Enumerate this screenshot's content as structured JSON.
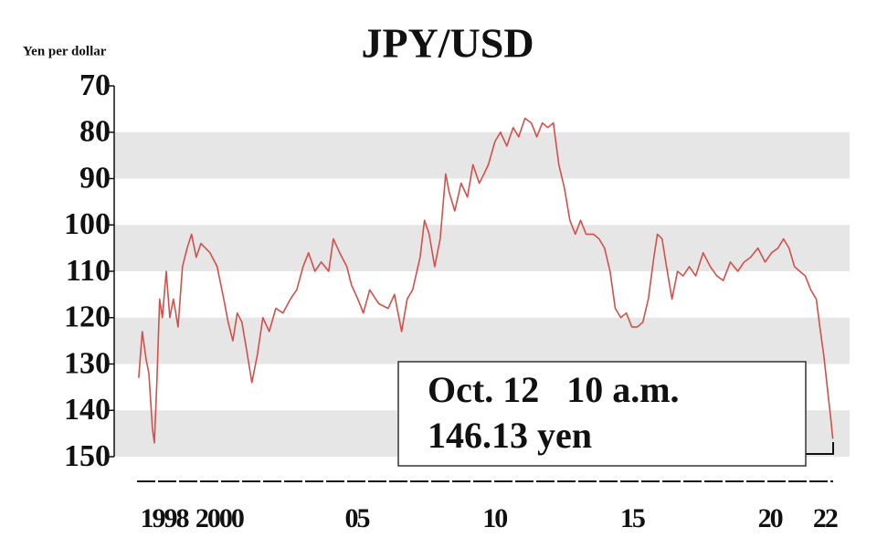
{
  "chart_data": {
    "type": "line",
    "title": "JPY/USD",
    "y_label": "Yen per dollar",
    "color": "#d2504a",
    "y_inverted": true,
    "bands": true,
    "ylim": [
      70,
      150
    ],
    "yticks": [
      70,
      80,
      90,
      100,
      110,
      120,
      130,
      140,
      150
    ],
    "xlim": [
      1996.19,
      2022.9
    ],
    "xticks": [
      {
        "value": 1998,
        "label": "1998"
      },
      {
        "value": 2000,
        "label": "2000"
      },
      {
        "value": 2005,
        "label": "05"
      },
      {
        "value": 2010,
        "label": "10"
      },
      {
        "value": 2015,
        "label": "15"
      },
      {
        "value": 2020,
        "label": "20"
      },
      {
        "value": 2022,
        "label": "22"
      }
    ],
    "annotation": [
      "Oct. 12   10 a.m.",
      "146.13 yen"
    ],
    "x": [
      1997.08,
      1997.21,
      1997.35,
      1997.45,
      1997.58,
      1997.65,
      1997.74,
      1997.84,
      1997.94,
      1998.08,
      1998.21,
      1998.34,
      1998.51,
      1998.67,
      1998.84,
      1999.0,
      1999.17,
      1999.34,
      1999.67,
      1999.93,
      2000.17,
      2000.33,
      2000.5,
      2000.66,
      2000.83,
      2001.0,
      2001.19,
      2001.39,
      2001.59,
      2001.82,
      2002.06,
      2002.32,
      2002.59,
      2002.82,
      2003.05,
      2003.25,
      2003.48,
      2003.71,
      2003.98,
      2004.15,
      2004.38,
      2004.64,
      2004.81,
      2005.04,
      2005.24,
      2005.47,
      2005.8,
      2006.14,
      2006.37,
      2006.63,
      2006.83,
      2007.03,
      2007.3,
      2007.46,
      2007.63,
      2007.83,
      2008.03,
      2008.23,
      2008.36,
      2008.56,
      2008.79,
      2009.02,
      2009.22,
      2009.45,
      2009.62,
      2009.78,
      2010.02,
      2010.22,
      2010.45,
      2010.68,
      2010.88,
      2011.11,
      2011.34,
      2011.54,
      2011.74,
      2011.94,
      2012.14,
      2012.34,
      2012.54,
      2012.74,
      2012.94,
      2013.13,
      2013.33,
      2013.6,
      2013.8,
      2014.0,
      2014.2,
      2014.39,
      2014.59,
      2014.79,
      2014.99,
      2015.19,
      2015.39,
      2015.59,
      2015.79,
      2015.92,
      2016.09,
      2016.25,
      2016.45,
      2016.65,
      2016.85,
      2017.08,
      2017.31,
      2017.58,
      2017.84,
      2018.08,
      2018.31,
      2018.57,
      2018.84,
      2019.07,
      2019.3,
      2019.57,
      2019.83,
      2020.07,
      2020.3,
      2020.5,
      2020.7,
      2020.9,
      2021.09,
      2021.29,
      2021.49,
      2021.69,
      2021.82,
      2021.96,
      2022.09,
      2022.22,
      2022.29
    ],
    "values": [
      133,
      123,
      129,
      132,
      144,
      147,
      134,
      116,
      120,
      110,
      120,
      116,
      122,
      109,
      105,
      102,
      107,
      104,
      106,
      109,
      116,
      121,
      125,
      119,
      121,
      127,
      134,
      128,
      120,
      123,
      118,
      119,
      116,
      114,
      109,
      106,
      110,
      108,
      110,
      103,
      106,
      109,
      113,
      116,
      119,
      114,
      117,
      118,
      115,
      123,
      116,
      114,
      107,
      99,
      102,
      109,
      103,
      89,
      93,
      97,
      91,
      94,
      87,
      91,
      89,
      87,
      82,
      80,
      83,
      79,
      81,
      77,
      78,
      81,
      78,
      79,
      78,
      87,
      92,
      99,
      102,
      99,
      102,
      102,
      103,
      105,
      110,
      118,
      120,
      119,
      122,
      122,
      121,
      116,
      107,
      102,
      103,
      109,
      116,
      110,
      111,
      109,
      111,
      106,
      109,
      111,
      112,
      108,
      110,
      108,
      107,
      105,
      108,
      106,
      105,
      103,
      105,
      109,
      110,
      111,
      114,
      116,
      122,
      128,
      135,
      142,
      146.13
    ]
  }
}
